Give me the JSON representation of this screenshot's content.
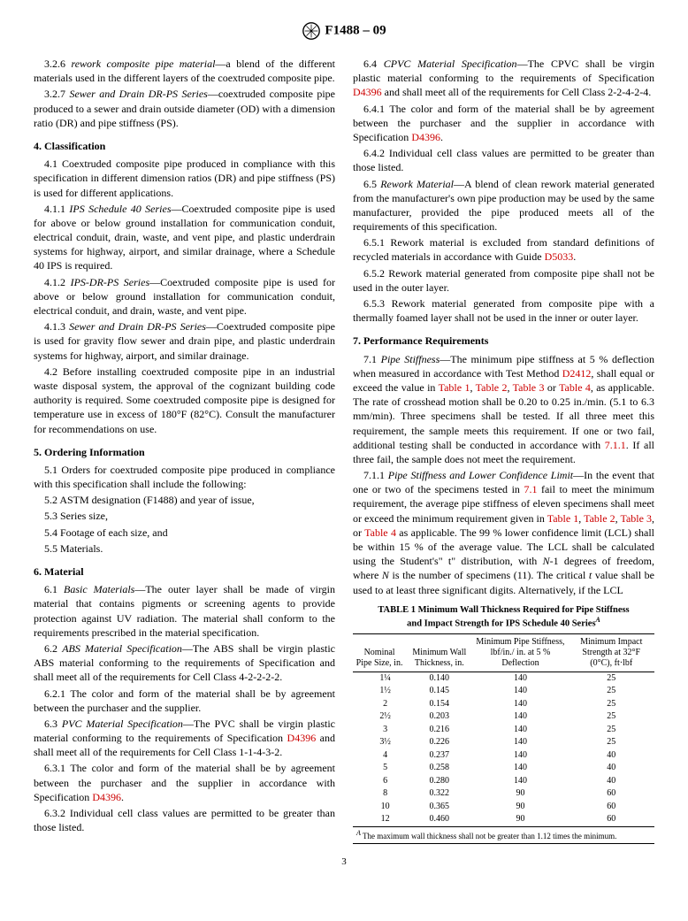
{
  "header": {
    "designation": "F1488 – 09"
  },
  "left_column": {
    "p326": {
      "num": "3.2.6 ",
      "term": "rework composite pipe material",
      "text": "—a blend of the different materials used in the different layers of the coextruded composite pipe."
    },
    "p327": {
      "num": "3.2.7 ",
      "term": "Sewer and Drain DR-PS Series",
      "text": "—coextruded composite pipe produced to a sewer and drain outside diameter (OD) with a dimension ratio (DR) and pipe stiffness (PS)."
    },
    "s4_title": "4. Classification",
    "p41": "4.1 Coextruded composite pipe produced in compliance with this specification in different dimension ratios (DR) and pipe stiffness (PS) is used for different applications.",
    "p411": {
      "num": "4.1.1 ",
      "term": "IPS Schedule 40 Series",
      "text": "—Coextruded composite pipe is used for above or below ground installation for communication conduit, electrical conduit, drain, waste, and vent pipe, and plastic underdrain systems for highway, airport, and similar drainage, where a Schedule 40 IPS is required."
    },
    "p412": {
      "num": "4.1.2 ",
      "term": "IPS-DR-PS Series",
      "text": "—Coextruded composite pipe is used for above or below ground installation for communication conduit, electrical conduit, and drain, waste, and vent pipe."
    },
    "p413": {
      "num": "4.1.3 ",
      "term": "Sewer and Drain DR-PS Series",
      "text": "—Coextruded composite pipe is used for gravity flow sewer and drain pipe, and plastic underdrain systems for highway, airport, and similar drainage."
    },
    "p42": "4.2 Before installing coextruded composite pipe in an industrial waste disposal system, the approval of the cognizant building code authority is required. Some coextruded composite pipe is designed for temperature use in excess of 180°F (82°C). Consult the manufacturer for recommendations on use.",
    "s5_title": "5. Ordering Information",
    "p51": "5.1 Orders for coextruded composite pipe produced in compliance with this specification shall include the following:",
    "p52": "5.2 ASTM designation (F1488) and year of issue,",
    "p53": "5.3 Series size,",
    "p54": "5.4 Footage of each size, and",
    "p55": "5.5 Materials.",
    "s6_title": "6. Material",
    "p61": {
      "num": "6.1 ",
      "term": "Basic Materials",
      "text": "—The outer layer shall be made of virgin material that contains pigments or screening agents to provide protection against UV radiation. The material shall conform to the requirements prescribed in the material specification."
    },
    "p62": {
      "num": "6.2 ",
      "term": "ABS Material Specification",
      "text": "—The ABS shall be virgin plastic ABS material conforming to the requirements of Specification and shall meet all of the requirements for Cell Class 4-2-2-2-2."
    },
    "p621": "6.2.1 The color and form of the material shall be by agreement between the purchaser and the supplier.",
    "p63": {
      "num": "6.3 ",
      "term": "PVC Material Specification",
      "text_before": "—The PVC shall be virgin plastic material conforming to the requirements of Specification ",
      "ref": "D4396",
      "text_after": " and shall meet all of the requirements for Cell Class 1-1-4-3-2."
    },
    "p631": {
      "text_before": "6.3.1 The color and form of the material shall be by agreement between the purchaser and the supplier in accordance with Specification ",
      "ref": "D4396",
      "text_after": "."
    },
    "p632": "6.3.2 Individual cell class values are permitted to be greater than those listed."
  },
  "right_column": {
    "p64": {
      "num": "6.4 ",
      "term": "CPVC Material Specification",
      "text_before": "—The CPVC shall be virgin plastic material conforming to the requirements of Specification ",
      "ref": "D4396",
      "text_after": " and shall meet all of the requirements for Cell Class 2-2-4-2-4."
    },
    "p641": {
      "text_before": "6.4.1 The color and form of the material shall be by agreement between the purchaser and the supplier in accordance with Specification ",
      "ref": "D4396",
      "text_after": "."
    },
    "p642": "6.4.2 Individual cell class values are permitted to be greater than those listed.",
    "p65": {
      "num": "6.5 ",
      "term": "Rework Material",
      "text": "—A blend of clean rework material generated from the manufacturer's own pipe production may be used by the same manufacturer, provided the pipe produced meets all of the requirements of this specification."
    },
    "p651": {
      "text_before": "6.5.1 Rework material is excluded from standard definitions of recycled materials in accordance with Guide ",
      "ref": "D5033",
      "text_after": "."
    },
    "p652": "6.5.2 Rework material generated from composite pipe shall not be used in the outer layer.",
    "p653": "6.5.3 Rework material generated from composite pipe with a thermally foamed layer shall not be used in the inner or outer layer.",
    "s7_title": "7. Performance Requirements",
    "p71": {
      "num": "7.1 ",
      "term": "Pipe Stiffness",
      "text_a": "—The minimum pipe stiffness at 5 % deflection when measured in accordance with Test Method ",
      "ref1": "D2412",
      "text_b": ", shall equal or exceed the value in ",
      "ref2": "Table 1",
      "ref3": "Table 2",
      "ref4": "Table 3",
      "ref5": "Table 4",
      "text_c": ", as applicable. The rate of crosshead motion shall be 0.20 to 0.25 in./min. (5.1 to 6.3 mm/min). Three specimens shall be tested. If all three meet this requirement, the sample meets this requirement. If one or two fail, additional testing shall be conducted in accordance with ",
      "ref6": "7.1.1",
      "text_d": ". If all three fail, the sample does not meet the requirement."
    },
    "p711": {
      "num": "7.1.1 ",
      "term": "Pipe Stiffness and Lower Confidence Limit",
      "text_a": "—In the event that one or two of the specimens tested in ",
      "ref1": "7.1",
      "text_b": " fail to meet the minimum requirement, the average pipe stiffness of eleven specimens shall meet or exceed the minimum requirement given in ",
      "ref2": "Table 1",
      "ref3": "Table 2",
      "ref4": "Table 3",
      "ref5": "Table 4",
      "text_c": " as applicable. The 99 % lower confidence limit (LCL) shall be within 15 % of the average value. The LCL shall be calculated using the Student's\" t\" distribution, with ",
      "text_d": "-1 degrees of freedom, where ",
      "text_e": " is the number of specimens (11). The critical ",
      "text_f": " value shall be used to at least three significant digits. Alternatively, if the LCL"
    }
  },
  "table1": {
    "caption_a": "TABLE 1  Minimum Wall Thickness Required for Pipe Stiffness",
    "caption_b": "and Impact Strength for IPS Schedule 40 Series",
    "sup": "A",
    "headers": {
      "c1": "Nominal Pipe Size, in.",
      "c2": "Minimum Wall Thickness, in.",
      "c3": "Minimum Pipe Stiffness, lbf/in./ in. at 5 % Deflection",
      "c4": "Minimum Impact Strength at 32°F (0°C), ft·lbf"
    },
    "rows": [
      {
        "c1": "1¼",
        "c2": "0.140",
        "c3": "140",
        "c4": "25"
      },
      {
        "c1": "1½",
        "c2": "0.145",
        "c3": "140",
        "c4": "25"
      },
      {
        "c1": "2",
        "c2": "0.154",
        "c3": "140",
        "c4": "25"
      },
      {
        "c1": "2½",
        "c2": "0.203",
        "c3": "140",
        "c4": "25"
      },
      {
        "c1": "3",
        "c2": "0.216",
        "c3": "140",
        "c4": "25"
      },
      {
        "c1": "3½",
        "c2": "0.226",
        "c3": "140",
        "c4": "25"
      },
      {
        "c1": "4",
        "c2": "0.237",
        "c3": "140",
        "c4": "40"
      },
      {
        "c1": "5",
        "c2": "0.258",
        "c3": "140",
        "c4": "40"
      },
      {
        "c1": "6",
        "c2": "0.280",
        "c3": "140",
        "c4": "40"
      },
      {
        "c1": "8",
        "c2": "0.322",
        "c3": "90",
        "c4": "60"
      },
      {
        "c1": "10",
        "c2": "0.365",
        "c3": "90",
        "c4": "60"
      },
      {
        "c1": "12",
        "c2": "0.460",
        "c3": "90",
        "c4": "60"
      }
    ],
    "footnote_sup": "A",
    "footnote": " The maximum wall thickness shall not be greater than 1.12 times the minimum."
  },
  "page_number": "3"
}
